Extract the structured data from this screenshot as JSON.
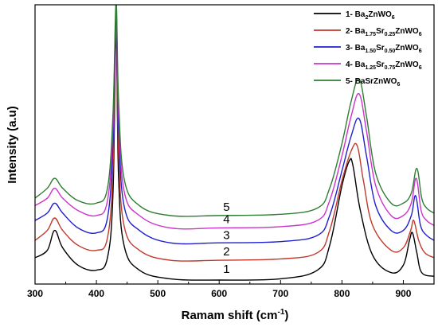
{
  "chart_data": {
    "type": "line",
    "xlabel": "Ramam shift (cm",
    "xlabel_sup": "-1",
    "xlabel_end": ")",
    "ylabel": "Intensity (a.u)",
    "xlim": [
      300,
      950
    ],
    "ylim": [
      0,
      100
    ],
    "y_ticks_shown": false,
    "xticks": [
      300,
      400,
      500,
      600,
      700,
      800,
      900
    ],
    "grid": false,
    "legend_position": "top-right",
    "series": [
      {
        "name": "1- Ba2ZnWO6",
        "legend": [
          {
            "t": "1- Ba"
          },
          {
            "t": "2",
            "sub": true
          },
          {
            "t": "ZnWO"
          },
          {
            "t": "6",
            "sub": true
          }
        ],
        "color": "#000000",
        "curve_label": "1",
        "curve_label_x": 612,
        "curve_label_y": 2,
        "x": [
          300,
          320,
          332,
          345,
          370,
          400,
          418,
          427,
          432,
          436,
          445,
          470,
          520,
          600,
          700,
          760,
          780,
          800,
          812,
          818,
          830,
          850,
          880,
          900,
          910,
          915,
          922,
          930,
          950
        ],
        "y": [
          9,
          12,
          20,
          13,
          6,
          4,
          9,
          35,
          100,
          42,
          14,
          4,
          0.5,
          0,
          0.5,
          4,
          14,
          38,
          48,
          46,
          28,
          10,
          3,
          6,
          16,
          19,
          11,
          3,
          1.5
        ]
      },
      {
        "name": "2- Ba1.75Sr0.25ZnWO6",
        "legend": [
          {
            "t": "2- Ba"
          },
          {
            "t": "1.75",
            "sub": true
          },
          {
            "t": "Sr"
          },
          {
            "t": "0.25",
            "sub": true
          },
          {
            "t": "ZnWO"
          },
          {
            "t": "6",
            "sub": true
          }
        ],
        "color": "#c0392b",
        "curve_label": "2",
        "curve_label_x": 612,
        "curve_label_y": 9,
        "x": [
          300,
          320,
          332,
          345,
          370,
          400,
          418,
          427,
          432,
          436,
          445,
          470,
          520,
          600,
          700,
          760,
          780,
          800,
          815,
          825,
          835,
          850,
          880,
          900,
          912,
          917,
          925,
          935,
          950
        ],
        "y": [
          16,
          20,
          25,
          20,
          14,
          12,
          17,
          45,
          103,
          52,
          22,
          12,
          8,
          8,
          8.5,
          11,
          20,
          40,
          52,
          54,
          40,
          22,
          12,
          13,
          20,
          24,
          16,
          11,
          9
        ]
      },
      {
        "name": "3- Ba1.50Sr0.50ZnWO6",
        "legend": [
          {
            "t": "3- Ba"
          },
          {
            "t": "1.50",
            "sub": true
          },
          {
            "t": "Sr"
          },
          {
            "t": "0.50",
            "sub": true
          },
          {
            "t": "ZnWO"
          },
          {
            "t": "6",
            "sub": true
          }
        ],
        "color": "#1f1fd0",
        "curve_label": "3",
        "curve_label_x": 612,
        "curve_label_y": 15.5,
        "x": [
          300,
          320,
          332,
          345,
          370,
          400,
          418,
          427,
          432,
          436,
          445,
          470,
          520,
          600,
          700,
          760,
          780,
          800,
          815,
          828,
          840,
          855,
          880,
          900,
          913,
          920,
          928,
          938,
          950
        ],
        "y": [
          24,
          27,
          31,
          27,
          21,
          19,
          25,
          55,
          107,
          62,
          30,
          20,
          15,
          15,
          15.5,
          18,
          26,
          44,
          58,
          65,
          50,
          30,
          20,
          20,
          26,
          34,
          22,
          18,
          16
        ]
      },
      {
        "name": "4- Ba1.25Sr0.75ZnWO6",
        "legend": [
          {
            "t": "4- Ba"
          },
          {
            "t": "1.25",
            "sub": true
          },
          {
            "t": "Sr"
          },
          {
            "t": "0.75",
            "sub": true
          },
          {
            "t": "ZnWO"
          },
          {
            "t": "6",
            "sub": true
          }
        ],
        "color": "#cc33cc",
        "curve_label": "4",
        "curve_label_x": 612,
        "curve_label_y": 22,
        "x": [
          300,
          320,
          332,
          345,
          370,
          400,
          418,
          427,
          432,
          436,
          445,
          470,
          520,
          600,
          700,
          760,
          780,
          800,
          815,
          828,
          840,
          855,
          880,
          900,
          913,
          921,
          929,
          938,
          950
        ],
        "y": [
          30,
          33,
          37,
          33,
          28,
          26,
          32,
          62,
          109,
          68,
          36,
          26,
          21,
          21,
          21.5,
          24,
          32,
          50,
          66,
          75,
          60,
          38,
          26,
          26,
          31,
          41,
          28,
          24,
          22
        ]
      },
      {
        "name": "5- BaSrZnWO6",
        "legend": [
          {
            "t": "5- BaSrZnWO"
          },
          {
            "t": "6",
            "sub": true
          }
        ],
        "color": "#2e7d32",
        "curve_label": "5",
        "curve_label_x": 612,
        "curve_label_y": 27,
        "x": [
          300,
          320,
          332,
          345,
          370,
          400,
          418,
          427,
          432,
          436,
          445,
          470,
          520,
          600,
          700,
          760,
          780,
          800,
          815,
          828,
          840,
          855,
          880,
          900,
          913,
          922,
          930,
          938,
          950
        ],
        "y": [
          33,
          37,
          41,
          37,
          32,
          31,
          37,
          67,
          112,
          73,
          41,
          30,
          26,
          26,
          26.5,
          29,
          37,
          55,
          72,
          81,
          66,
          43,
          31,
          31,
          35,
          45,
          33,
          29,
          27
        ]
      }
    ]
  }
}
